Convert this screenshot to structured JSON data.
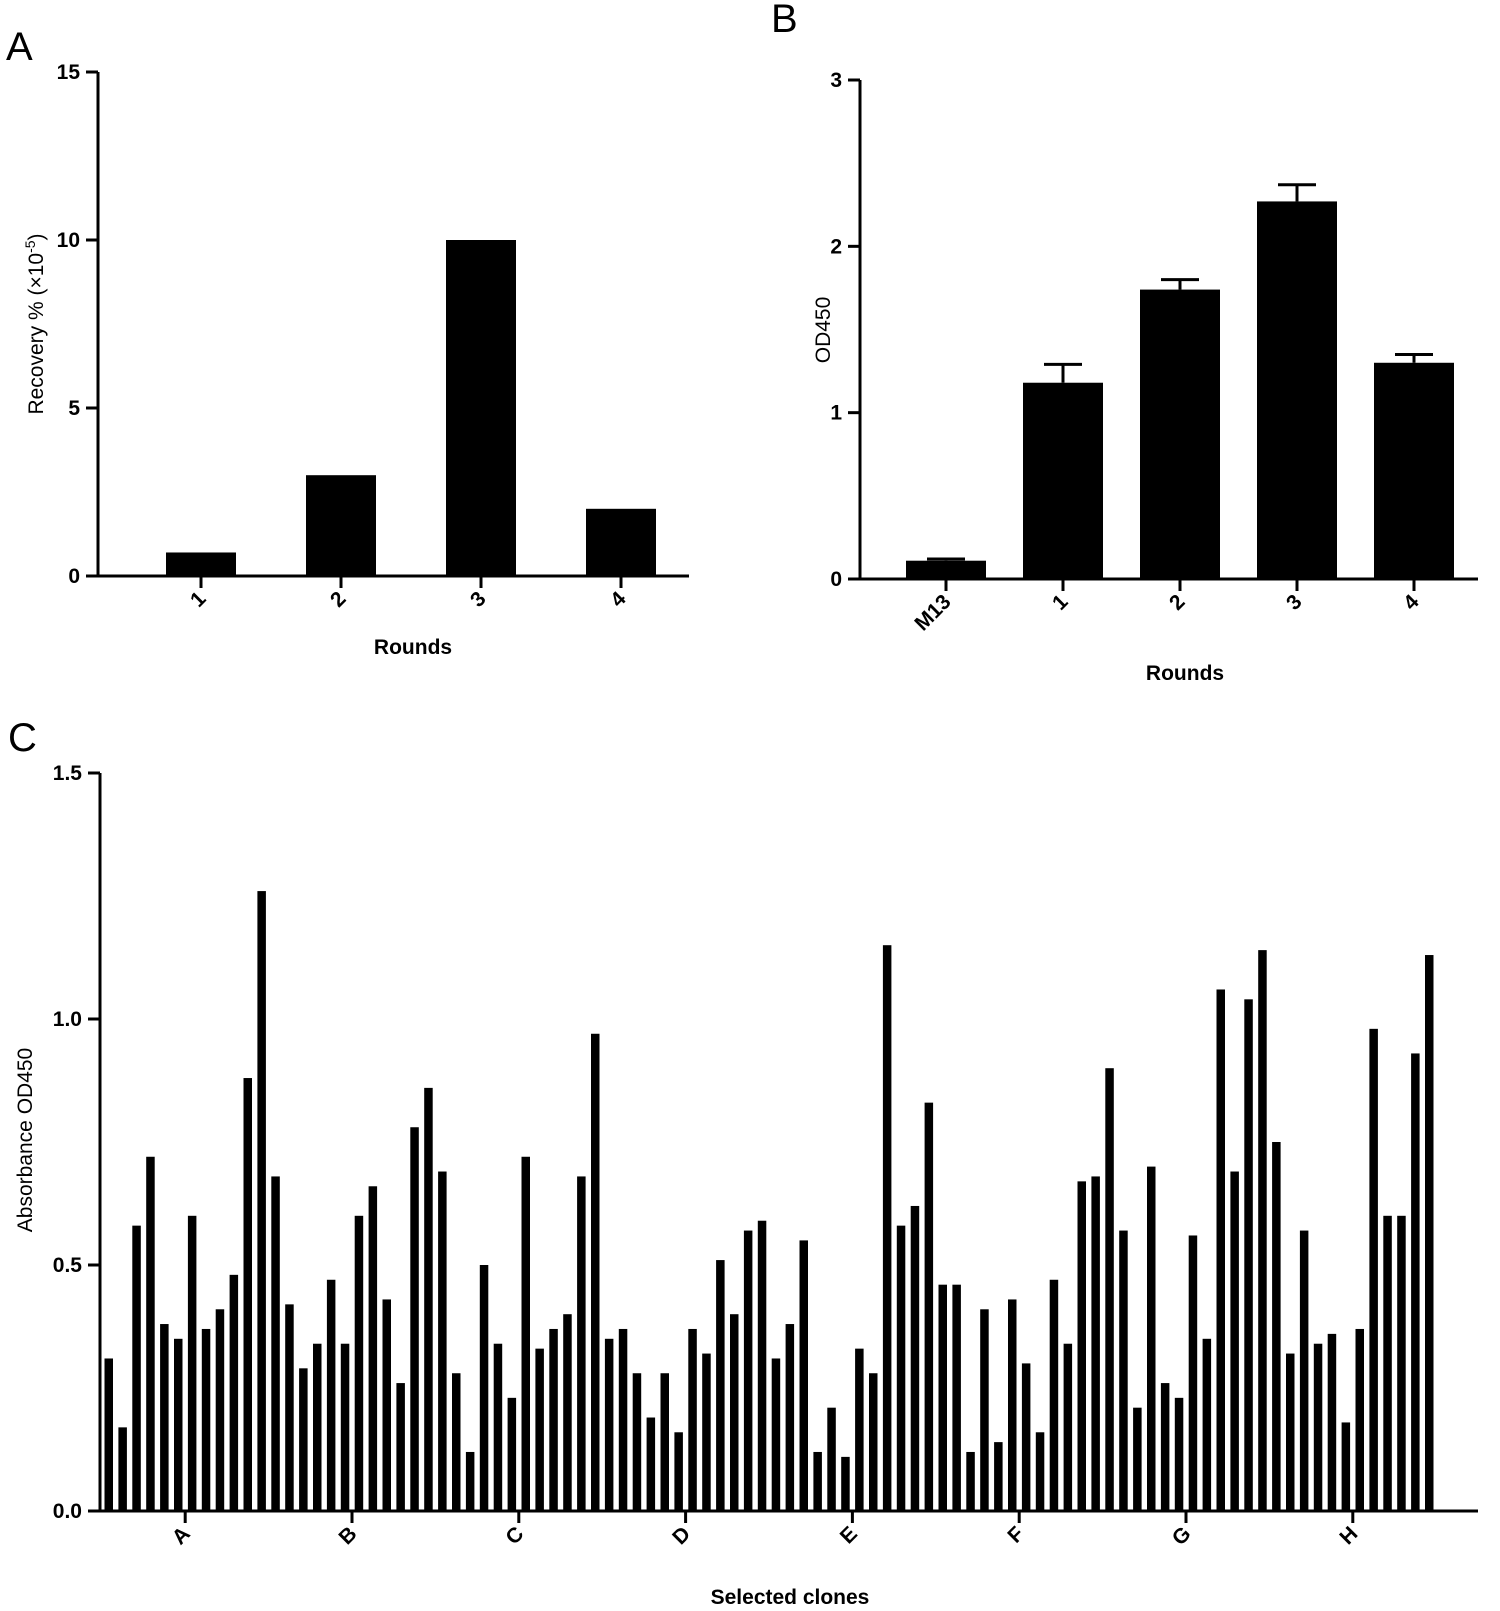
{
  "chart_data": [
    {
      "panel": "A",
      "type": "bar",
      "categories": [
        "1",
        "2",
        "3",
        "4"
      ],
      "values": [
        0.7,
        3,
        10,
        2
      ],
      "xlabel": "Rounds",
      "ylabel": "Recovery % (×10",
      "ylabel_sup": "-5",
      "ylabel_end": ")",
      "ylim": [
        0,
        15
      ],
      "yticks": [
        "0",
        "5",
        "10",
        "15"
      ],
      "grid": false,
      "bar_color": "#000000"
    },
    {
      "panel": "B",
      "type": "bar",
      "categories": [
        "M13",
        "1",
        "2",
        "3",
        "4"
      ],
      "values": [
        0.11,
        1.18,
        1.74,
        2.27,
        1.3
      ],
      "errors": [
        0.01,
        0.11,
        0.06,
        0.1,
        0.05
      ],
      "xlabel": "Rounds",
      "ylabel": "OD450",
      "ylim": [
        0,
        3
      ],
      "yticks": [
        "0",
        "1",
        "2",
        "3"
      ],
      "grid": false,
      "bar_color": "#000000"
    },
    {
      "panel": "C",
      "type": "bar",
      "categories": [
        "A",
        "B",
        "C",
        "D",
        "E",
        "F",
        "G",
        "H"
      ],
      "values_per_group": [
        [
          0.31,
          0.17,
          0.58,
          0.72,
          0.38,
          0.35,
          0.6,
          0.37,
          0.41,
          0.48,
          0.88,
          1.26
        ],
        [
          0.68,
          0.42,
          0.29,
          0.34,
          0.47,
          0.34,
          0.6,
          0.66,
          0.43,
          0.26,
          0.78,
          0.86
        ],
        [
          0.69,
          0.28,
          0.12,
          0.5,
          0.34,
          0.23,
          0.72,
          0.33,
          0.37,
          0.4,
          0.68,
          0.97
        ],
        [
          0.35,
          0.37,
          0.28,
          0.19,
          0.28,
          0.16,
          0.37,
          0.32,
          0.51,
          0.4,
          0.57,
          0.59
        ],
        [
          0.31,
          0.38,
          0.55,
          0.12,
          0.21,
          0.11,
          0.33,
          0.28,
          1.15,
          0.58,
          0.62,
          0.83
        ],
        [
          0.46,
          0.46,
          0.12,
          0.41,
          0.14,
          0.43,
          0.3,
          0.16,
          0.47,
          0.34,
          0.67,
          0.68
        ],
        [
          0.9,
          0.57,
          0.21,
          0.7,
          0.26,
          0.23,
          0.56,
          0.35,
          1.06,
          0.69,
          1.04,
          1.14
        ],
        [
          0.75,
          0.32,
          0.57,
          0.34,
          0.36,
          0.18,
          0.37,
          0.98,
          0.6,
          0.6,
          0.93,
          1.13
        ]
      ],
      "xlabel": "Selected clones",
      "ylabel": "Absorbance OD450",
      "ylim": [
        0,
        1.5
      ],
      "yticks": [
        "0.0",
        "0.5",
        "1.0",
        "1.5"
      ],
      "grid": false,
      "bar_color": "#000000"
    }
  ]
}
